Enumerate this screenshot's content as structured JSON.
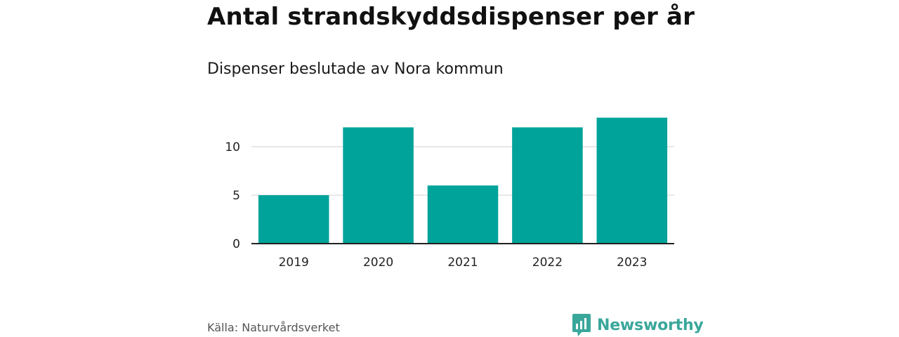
{
  "chart_data": {
    "type": "bar",
    "title": "Antal strandskyddsdispenser per år",
    "subtitle": "Dispenser beslutade av Nora kommun",
    "categories": [
      "2019",
      "2020",
      "2021",
      "2022",
      "2023"
    ],
    "values": [
      5,
      12,
      6,
      12,
      13
    ],
    "xlabel": "",
    "ylabel": "",
    "ylim": [
      0,
      13
    ],
    "yticks": [
      0,
      5,
      10
    ],
    "ytick_labels": [
      "0",
      "5",
      "10"
    ],
    "grid": true,
    "bar_color": "#00a39a"
  },
  "source": "Källa: Naturvårdsverket",
  "brand": {
    "name": "Newsworthy",
    "icon": "newsworthy-logo-icon",
    "color": "#3aa79b"
  }
}
